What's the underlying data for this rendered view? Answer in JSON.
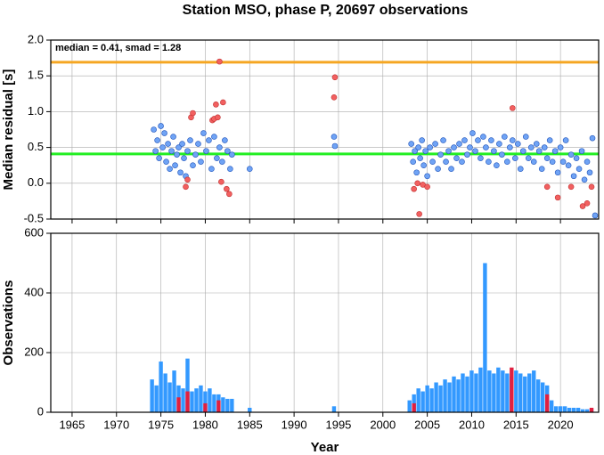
{
  "chart_data": [
    {
      "type": "scatter",
      "title": "Station MSO, phase P, 20697 observations",
      "ylabel": "Median residual [s]",
      "annotation": "median = 0.41, smad = 1.28",
      "xlim": [
        1962.6,
        2024.3
      ],
      "xticks": [
        1965,
        1970,
        1975,
        1980,
        1985,
        1990,
        1995,
        2000,
        2005,
        2010,
        2015,
        2020
      ],
      "ylim": [
        -0.5,
        2.0
      ],
      "yticks": [
        -0.5,
        {
          "value": 0,
          "label": "0.0"
        },
        0.5,
        {
          "value": 1,
          "label": "1.0"
        },
        1.5,
        {
          "value": 2,
          "label": "2.0"
        }
      ],
      "grid": true,
      "hlines": [
        {
          "value": 0.41,
          "color": "#22ee22"
        },
        {
          "value": 1.69,
          "color": "#f5a623"
        }
      ],
      "series": [
        {
          "color": "#6fa3f5",
          "x": [
            1974.2,
            1974.4,
            1974.6,
            1974.8,
            1975.0,
            1975.2,
            1975.4,
            1975.6,
            1975.8,
            1976.0,
            1976.2,
            1976.4,
            1976.6,
            1976.8,
            1977.0,
            1977.2,
            1977.4,
            1977.6,
            1977.8,
            1978.0,
            1978.3,
            1978.6,
            1978.9,
            1979.2,
            1979.5,
            1979.8,
            1980.1,
            1980.4,
            1980.7,
            1981.0,
            1981.3,
            1981.6,
            1981.9,
            1982.2,
            1982.5,
            1982.8,
            1983.0,
            1985.0,
            1994.5,
            1994.6,
            2003.2,
            2003.4,
            2003.6,
            2003.8,
            2004.0,
            2004.2,
            2004.4,
            2004.6,
            2004.8,
            2005.0,
            2005.3,
            2005.6,
            2005.9,
            2006.2,
            2006.5,
            2006.8,
            2007.1,
            2007.4,
            2007.7,
            2008.0,
            2008.3,
            2008.6,
            2008.9,
            2009.2,
            2009.5,
            2009.8,
            2010.1,
            2010.4,
            2010.7,
            2011.0,
            2011.3,
            2011.6,
            2011.9,
            2012.2,
            2012.5,
            2012.8,
            2013.1,
            2013.4,
            2013.7,
            2014.0,
            2014.3,
            2014.6,
            2014.9,
            2015.2,
            2015.5,
            2015.8,
            2016.1,
            2016.4,
            2016.7,
            2017.0,
            2017.3,
            2017.6,
            2017.9,
            2018.2,
            2018.5,
            2018.8,
            2019.1,
            2019.4,
            2019.7,
            2020.0,
            2020.3,
            2020.6,
            2020.9,
            2021.2,
            2021.5,
            2021.8,
            2022.1,
            2022.4,
            2022.7,
            2023.0,
            2023.3,
            2023.6,
            2023.9
          ],
          "values": [
            0.75,
            0.45,
            0.6,
            0.35,
            0.8,
            0.5,
            0.7,
            0.3,
            0.55,
            0.2,
            0.45,
            0.65,
            0.25,
            0.4,
            0.5,
            0.15,
            0.55,
            0.35,
            0.1,
            0.45,
            0.6,
            0.25,
            0.4,
            0.55,
            0.3,
            0.7,
            0.45,
            0.6,
            0.2,
            0.65,
            0.35,
            0.5,
            0.3,
            0.6,
            0.45,
            0.2,
            0.4,
            0.2,
            0.65,
            0.52,
            0.55,
            0.3,
            0.45,
            0.15,
            0.5,
            0.35,
            0.6,
            0.25,
            0.45,
            0.1,
            0.5,
            0.3,
            0.55,
            0.2,
            0.4,
            0.6,
            0.3,
            0.45,
            0.2,
            0.5,
            0.35,
            0.55,
            0.3,
            0.6,
            0.4,
            0.5,
            0.7,
            0.45,
            0.6,
            0.35,
            0.65,
            0.5,
            0.3,
            0.6,
            0.45,
            0.25,
            0.55,
            0.4,
            0.65,
            0.3,
            0.5,
            0.6,
            0.35,
            0.55,
            0.2,
            0.45,
            0.65,
            0.35,
            0.5,
            0.3,
            0.55,
            0.45,
            0.2,
            0.5,
            0.35,
            0.6,
            0.3,
            0.45,
            0.15,
            0.5,
            0.3,
            0.6,
            0.25,
            0.4,
            0.1,
            0.35,
            0.2,
            0.45,
            0.05,
            0.3,
            0.15,
            0.63,
            -0.45
          ]
        },
        {
          "color": "#f26060",
          "x": [
            1977.8,
            1978.0,
            1978.4,
            1978.6,
            1980.8,
            1981.0,
            1981.2,
            1981.4,
            1981.6,
            1981.8,
            1982.0,
            1982.4,
            1982.7,
            1994.5,
            1994.6,
            2003.5,
            2003.9,
            2004.1,
            2004.5,
            2005.0,
            2014.6,
            2018.5,
            2019.7,
            2021.2,
            2022.5,
            2023.0,
            2023.5
          ],
          "values": [
            -0.05,
            0.05,
            0.92,
            0.98,
            0.88,
            0.9,
            1.1,
            0.92,
            1.7,
            0.02,
            1.13,
            -0.08,
            -0.15,
            1.2,
            1.48,
            -0.08,
            0.0,
            -0.43,
            -0.02,
            -0.05,
            1.05,
            -0.05,
            -0.2,
            -0.05,
            -0.32,
            -0.28,
            -0.05
          ]
        }
      ]
    },
    {
      "type": "bar",
      "ylabel": "Observations",
      "xlabel": "Year",
      "xlim": [
        1962.6,
        2024.3
      ],
      "xticks": [
        1965,
        1970,
        1975,
        1980,
        1985,
        1990,
        1995,
        2000,
        2005,
        2010,
        2015,
        2020
      ],
      "ylim": [
        0,
        600
      ],
      "yticks": [
        0,
        200,
        400,
        600
      ],
      "grid": true,
      "series": [
        {
          "color": "#3399ff",
          "x": [
            1974.0,
            1974.5,
            1975.0,
            1975.5,
            1976.0,
            1976.5,
            1977.0,
            1977.5,
            1978.0,
            1978.5,
            1979.0,
            1979.5,
            1980.0,
            1980.5,
            1981.0,
            1981.5,
            1982.0,
            1982.5,
            1983.0,
            1985.0,
            1994.5,
            2003.0,
            2003.5,
            2004.0,
            2004.5,
            2005.0,
            2005.5,
            2006.0,
            2006.5,
            2007.0,
            2007.5,
            2008.0,
            2008.5,
            2009.0,
            2009.5,
            2010.0,
            2010.5,
            2011.0,
            2011.5,
            2012.0,
            2012.5,
            2013.0,
            2013.5,
            2014.0,
            2014.5,
            2015.0,
            2015.5,
            2016.0,
            2016.5,
            2017.0,
            2017.5,
            2018.0,
            2018.5,
            2019.0,
            2019.5,
            2020.0,
            2020.5,
            2021.0,
            2021.5,
            2022.0,
            2022.5,
            2023.0,
            2023.5
          ],
          "values": [
            110,
            90,
            170,
            130,
            100,
            140,
            90,
            80,
            180,
            70,
            80,
            90,
            70,
            80,
            60,
            60,
            50,
            45,
            45,
            15,
            20,
            40,
            60,
            80,
            70,
            90,
            80,
            100,
            90,
            110,
            100,
            120,
            110,
            130,
            120,
            140,
            130,
            150,
            500,
            140,
            130,
            150,
            140,
            130,
            120,
            140,
            130,
            120,
            130,
            140,
            110,
            100,
            90,
            40,
            20,
            20,
            20,
            15,
            15,
            15,
            10,
            10,
            10
          ]
        },
        {
          "color": "#e02040",
          "x": [
            1977.0,
            1978.0,
            1980.0,
            1981.5,
            2003.5,
            2014.5,
            2018.5,
            2023.5
          ],
          "values": [
            50,
            70,
            30,
            40,
            30,
            150,
            60,
            15
          ]
        }
      ]
    }
  ]
}
